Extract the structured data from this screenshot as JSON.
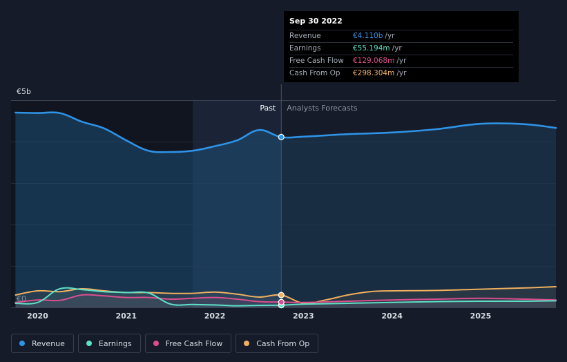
{
  "chart_data": {
    "type": "line",
    "title": "",
    "xlabel": "",
    "ylabel": "",
    "currency_symbol": "€",
    "y_axis_labels": [
      "€5b",
      "€0"
    ],
    "ylim": [
      0,
      5
    ],
    "xlim": [
      2019.7,
      2025.85
    ],
    "x_ticks": [
      2020,
      2021,
      2022,
      2023,
      2024,
      2025
    ],
    "x_tick_labels": [
      "2020",
      "2021",
      "2022",
      "2023",
      "2024",
      "2025"
    ],
    "divider_x": 2022.75,
    "highlight_start_x": 2021.75,
    "past_label": "Past",
    "forecast_label": "Analysts Forecasts",
    "series": [
      {
        "name": "Revenue",
        "color": "#2f93e6",
        "fill": true,
        "x": [
          2019.75,
          2020,
          2020.25,
          2020.5,
          2020.75,
          2021,
          2021.25,
          2021.5,
          2021.75,
          2022,
          2022.25,
          2022.5,
          2022.75,
          2023,
          2023.5,
          2024,
          2024.5,
          2025,
          2025.5,
          2025.85
        ],
        "values": [
          4.7,
          4.69,
          4.69,
          4.48,
          4.32,
          4.03,
          3.78,
          3.75,
          3.78,
          3.89,
          4.03,
          4.28,
          4.11,
          4.12,
          4.18,
          4.22,
          4.3,
          4.43,
          4.42,
          4.33
        ]
      },
      {
        "name": "Earnings",
        "color": "#5ee0c6",
        "fill": false,
        "x": [
          2019.75,
          2020,
          2020.25,
          2020.5,
          2020.75,
          2021,
          2021.25,
          2021.5,
          2021.75,
          2022,
          2022.25,
          2022.5,
          2022.75,
          2023,
          2023.5,
          2024,
          2024.5,
          2025,
          2025.5,
          2025.85
        ],
        "values": [
          0.1,
          0.12,
          0.45,
          0.43,
          0.38,
          0.36,
          0.35,
          0.08,
          0.07,
          0.06,
          0.04,
          0.05,
          0.055,
          0.08,
          0.1,
          0.12,
          0.14,
          0.15,
          0.15,
          0.16
        ]
      },
      {
        "name": "Free Cash Flow",
        "color": "#d94f8e",
        "fill": false,
        "x": [
          2019.75,
          2020,
          2020.25,
          2020.5,
          2020.75,
          2021,
          2021.25,
          2021.5,
          2021.75,
          2022,
          2022.25,
          2022.5,
          2022.75,
          2023,
          2023.5,
          2024,
          2024.5,
          2025,
          2025.5,
          2025.85
        ],
        "values": [
          0.12,
          0.18,
          0.17,
          0.3,
          0.28,
          0.24,
          0.24,
          0.2,
          0.22,
          0.24,
          0.2,
          0.14,
          0.129,
          0.12,
          0.15,
          0.18,
          0.2,
          0.22,
          0.2,
          0.18
        ]
      },
      {
        "name": "Cash From Op",
        "color": "#f0b060",
        "fill": false,
        "x": [
          2019.75,
          2020,
          2020.25,
          2020.5,
          2020.75,
          2021,
          2021.25,
          2021.5,
          2021.75,
          2022,
          2022.25,
          2022.5,
          2022.75,
          2023,
          2023.25,
          2023.5,
          2023.75,
          2024,
          2024.5,
          2025,
          2025.5,
          2025.85
        ],
        "values": [
          0.3,
          0.4,
          0.38,
          0.45,
          0.4,
          0.36,
          0.36,
          0.34,
          0.34,
          0.37,
          0.32,
          0.25,
          0.298,
          0.1,
          0.18,
          0.3,
          0.38,
          0.4,
          0.41,
          0.44,
          0.47,
          0.5
        ]
      }
    ]
  },
  "tooltip": {
    "date": "Sep 30 2022",
    "rows": [
      {
        "label": "Revenue",
        "value": "€4.110b",
        "unit": "/yr",
        "color": "#2f93e6"
      },
      {
        "label": "Earnings",
        "value": "€55.194m",
        "unit": "/yr",
        "color": "#5ee0c6"
      },
      {
        "label": "Free Cash Flow",
        "value": "€129.068m",
        "unit": "/yr",
        "color": "#d94f8e"
      },
      {
        "label": "Cash From Op",
        "value": "€298.304m",
        "unit": "/yr",
        "color": "#f0b060"
      }
    ]
  },
  "legend": [
    {
      "label": "Revenue",
      "color": "#2f93e6"
    },
    {
      "label": "Earnings",
      "color": "#5ee0c6"
    },
    {
      "label": "Free Cash Flow",
      "color": "#d94f8e"
    },
    {
      "label": "Cash From Op",
      "color": "#f0b060"
    }
  ]
}
